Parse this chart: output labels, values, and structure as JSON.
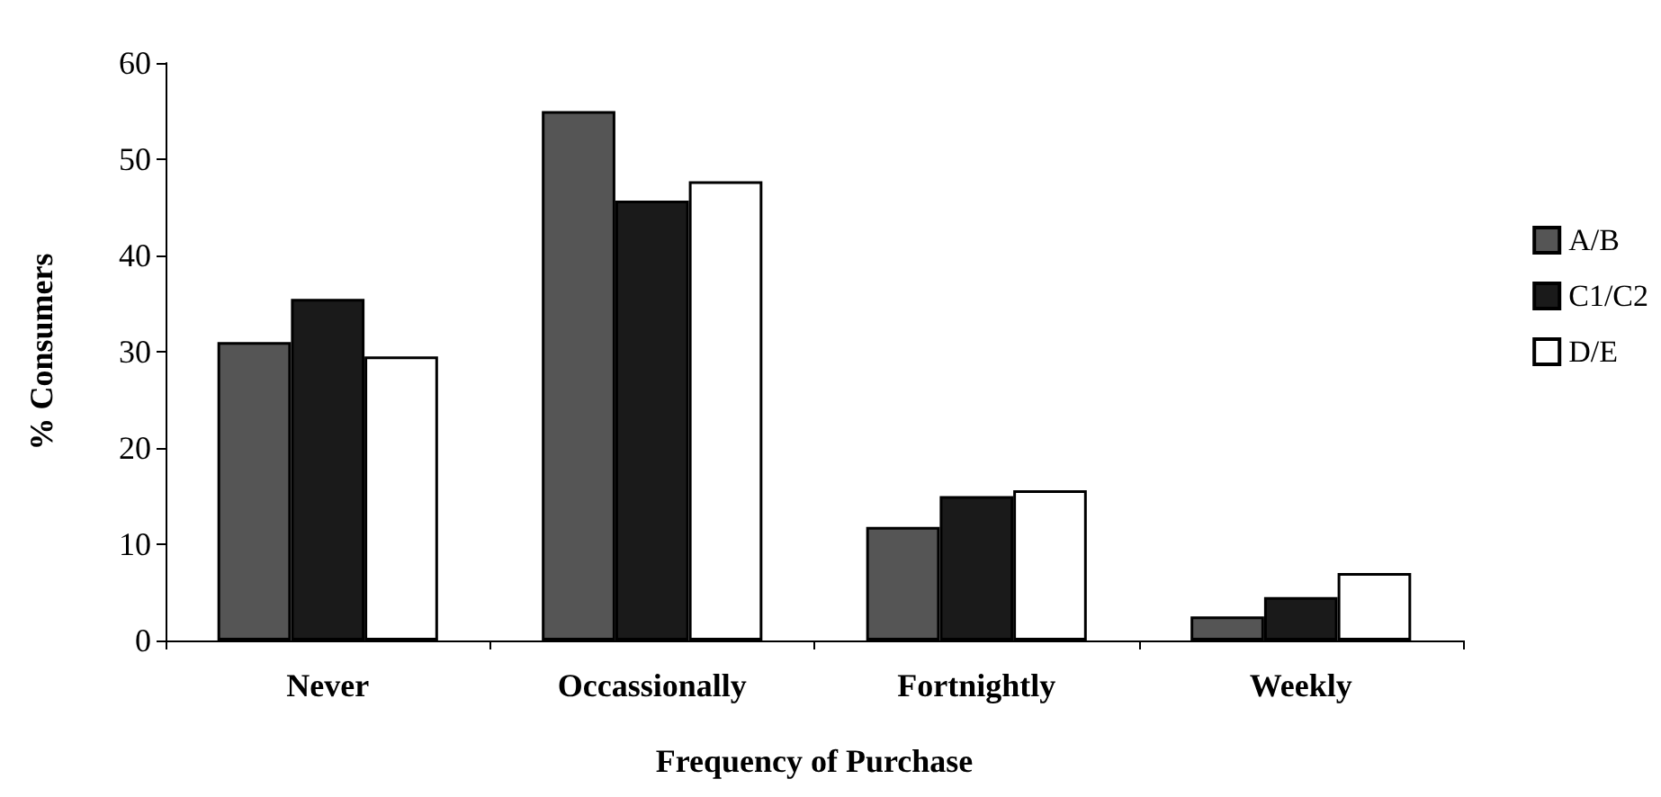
{
  "chart_data": {
    "type": "bar",
    "xlabel": "Frequency of Purchase",
    "ylabel": "% Consumers",
    "categories": [
      "Never",
      "Occassionally",
      "Fortnightly",
      "Weekly"
    ],
    "series": [
      {
        "name": "A/B",
        "color": "#555555",
        "values": [
          31,
          55,
          11.8,
          2.5
        ]
      },
      {
        "name": "C1/C2",
        "color": "#1a1a1a",
        "values": [
          35.5,
          45.7,
          15,
          4.5
        ]
      },
      {
        "name": "D/E",
        "color": "#ffffff",
        "values": [
          29.5,
          47.7,
          15.6,
          7
        ]
      }
    ],
    "ylim": [
      0,
      60
    ],
    "yticks": [
      0,
      10,
      20,
      30,
      40,
      50,
      60
    ],
    "grid": false,
    "legend": "right"
  }
}
